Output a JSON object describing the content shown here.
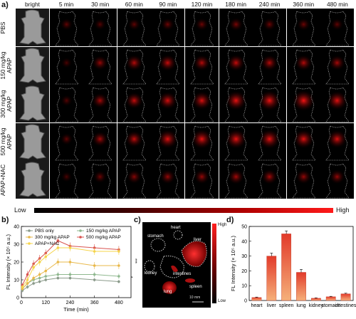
{
  "panel_a": {
    "label": "a)",
    "columns": [
      "bright",
      "5 min",
      "30 min",
      "60 min",
      "90 min",
      "120 min",
      "180 min",
      "240 min",
      "360 min",
      "480 min"
    ],
    "rows": [
      {
        "label": "PBS",
        "lines": [
          "PBS"
        ],
        "intensity": [
          0,
          0.25,
          0.2,
          0.25,
          0.3,
          0.3,
          0.35,
          0.3,
          0.3,
          0.25
        ]
      },
      {
        "label": "150 mg/kg APAP",
        "lines": [
          "150 mg/kg",
          "APAP"
        ],
        "intensity": [
          0,
          0.15,
          0.45,
          0.55,
          0.6,
          0.55,
          0.6,
          0.55,
          0.55,
          0.5
        ]
      },
      {
        "label": "300 mg/kg APAP",
        "lines": [
          "300 mg/kg",
          "APAP"
        ],
        "intensity": [
          0,
          0.2,
          0.5,
          0.6,
          0.7,
          0.75,
          0.85,
          0.9,
          0.95,
          0.8
        ]
      },
      {
        "label": "500 mg/kg APAP",
        "lines": [
          "500 mg/kg",
          "APAP"
        ],
        "intensity": [
          0,
          0.25,
          0.5,
          0.6,
          0.8,
          0.85,
          0.85,
          0.85,
          0.8,
          0.75
        ]
      },
      {
        "label": "APAP+NAC",
        "lines": [
          "APAP+NAC"
        ],
        "intensity": [
          0,
          0.15,
          0.3,
          0.4,
          0.45,
          0.45,
          0.5,
          0.5,
          0.45,
          0.45
        ]
      }
    ],
    "scale_low": "Low",
    "scale_high": "High"
  },
  "panel_b": {
    "label": "b)"
  },
  "panel_c": {
    "label": "c)",
    "organs": [
      "heart",
      "stomach",
      "liver",
      "kidney",
      "intestines",
      "lung",
      "spleen"
    ],
    "colorbar_high": "High",
    "colorbar_low": "Low",
    "scalebar": "10 mm"
  },
  "panel_d": {
    "label": "d)"
  },
  "chart_data": [
    {
      "type": "line",
      "ylabel": "FL Intensity (× 10⁵ a.u.)",
      "xlabel": "Time (min)",
      "xlim": [
        0,
        540
      ],
      "ylim": [
        0,
        40
      ],
      "xticks": [
        0,
        120,
        240,
        360,
        480
      ],
      "yticks": [
        0,
        10,
        20,
        30,
        40
      ],
      "x": [
        5,
        30,
        60,
        90,
        120,
        180,
        240,
        360,
        480
      ],
      "series": [
        {
          "name": "PBS only",
          "color": "#8a9a8a",
          "values": [
            4,
            6,
            8,
            9,
            10,
            11,
            11,
            10,
            9
          ],
          "err": [
            1,
            1,
            1,
            1,
            1,
            1,
            1,
            1,
            1
          ]
        },
        {
          "name": "150 mg/kg APAP",
          "color": "#8fb88f",
          "values": [
            5,
            8,
            10,
            11,
            12,
            13,
            13,
            13,
            12
          ],
          "err": [
            1,
            1,
            1,
            1,
            1.5,
            1.5,
            1.5,
            1.5,
            1.5
          ]
        },
        {
          "name": "300 mg/kg APAP",
          "color": "#e8b84a",
          "values": [
            5,
            8,
            11,
            13,
            15,
            20,
            20,
            18,
            18
          ],
          "err": [
            1,
            1,
            1.5,
            1.5,
            2,
            2,
            2,
            2,
            2
          ]
        },
        {
          "name": "500 mg/kg APAP",
          "color": "#d9534f",
          "values": [
            7,
            13,
            19,
            22,
            25,
            32,
            29,
            28,
            27
          ],
          "err": [
            1,
            2,
            2,
            2,
            2,
            2,
            2,
            2,
            2
          ]
        },
        {
          "name": "APAP+NAC",
          "color": "#f5d44a",
          "values": [
            6,
            10,
            17,
            20,
            23,
            28,
            28,
            26,
            26
          ],
          "err": [
            1,
            1.5,
            2,
            2,
            2,
            2,
            2,
            2,
            2
          ]
        }
      ],
      "significance": [
        "***",
        "*"
      ],
      "legend_position": "top"
    },
    {
      "type": "bar",
      "ylabel": "FL Intensity (× 10⁵ a.u.)",
      "categories": [
        "heart",
        "liver",
        "spleen",
        "lung",
        "kidney",
        "stomach",
        "intestines"
      ],
      "values": [
        2,
        30,
        45,
        19,
        1.5,
        2.5,
        4.5
      ],
      "err": [
        0.3,
        2,
        2,
        2,
        0.3,
        0.3,
        0.4
      ],
      "ylim": [
        0,
        50
      ],
      "yticks": [
        0,
        10,
        20,
        30,
        40,
        50
      ]
    }
  ]
}
